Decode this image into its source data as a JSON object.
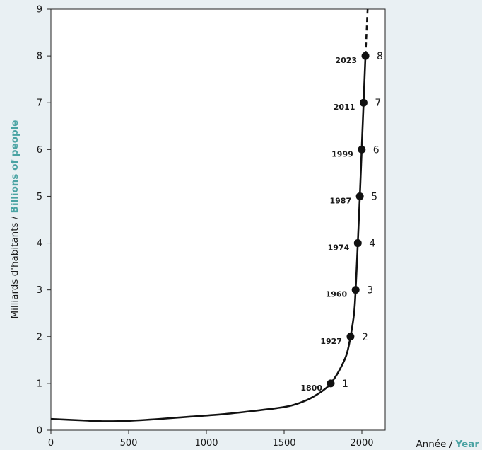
{
  "chart_data": {
    "type": "line",
    "ylabel_fr": "Milliards d'habitants / ",
    "ylabel_en": "Billions of people",
    "xlabel_fr": "Année / ",
    "xlabel_en": "Year",
    "xlim": [
      0,
      2150
    ],
    "ylim": [
      0,
      9
    ],
    "xticks": [
      0,
      500,
      1000,
      1500,
      2000
    ],
    "yticks": [
      0,
      1,
      2,
      3,
      4,
      5,
      6,
      7,
      8,
      9
    ],
    "grid": false,
    "colors": {
      "background": "#e9f0f3",
      "line": "#111111",
      "accent": "#4aa3a3",
      "text": "#1a1a1a"
    },
    "curve": {
      "x": [
        0,
        200,
        350,
        500,
        700,
        900,
        1100,
        1300,
        1450,
        1550,
        1650,
        1720,
        1770,
        1800,
        1850,
        1900,
        1927,
        1950,
        1960,
        1974,
        1987,
        1999,
        2011,
        2023
      ],
      "y": [
        0.24,
        0.21,
        0.19,
        0.2,
        0.24,
        0.29,
        0.34,
        0.41,
        0.47,
        0.53,
        0.65,
        0.78,
        0.9,
        1.0,
        1.25,
        1.6,
        2.0,
        2.5,
        3.0,
        4.0,
        5.0,
        6.0,
        7.0,
        8.0
      ]
    },
    "projection": {
      "x": [
        2023,
        2030,
        2037
      ],
      "y": [
        8.0,
        8.5,
        9.0
      ]
    },
    "milestones": [
      {
        "year": "1800",
        "value": 1,
        "label": "1"
      },
      {
        "year": "1927",
        "value": 2,
        "label": "2"
      },
      {
        "year": "1960",
        "value": 3,
        "label": "3"
      },
      {
        "year": "1974",
        "value": 4,
        "label": "4"
      },
      {
        "year": "1987",
        "value": 5,
        "label": "5"
      },
      {
        "year": "1999",
        "value": 6,
        "label": "6"
      },
      {
        "year": "2011",
        "value": 7,
        "label": "7"
      },
      {
        "year": "2023",
        "value": 8,
        "label": "8"
      }
    ]
  }
}
